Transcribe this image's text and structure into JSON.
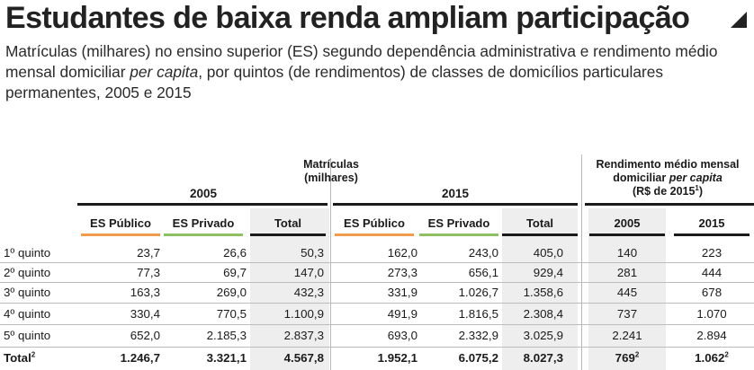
{
  "title": "Estudantes de baixa renda ampliam participação",
  "subtitle_parts": [
    "Matrículas (milhares) no ensino superior (ES) segundo dependência administrativa e rendimento médio mensal domiciliar ",
    "per capita",
    ", por quintos (de rendimentos) de classes de domicílios particulares permanentes, 2005 e 2015"
  ],
  "chart_data": {
    "type": "table",
    "group_headers": {
      "matriculas": "Matrículas\n(milhares)",
      "year_2005": "2005",
      "year_2015": "2015",
      "rendimento_line1": "Rendimento médio mensal",
      "rendimento_line2_pre": "domiciliar ",
      "rendimento_line2_em": "per capita",
      "rendimento_line3": "(R$ de 2015",
      "rendimento_line3_sup": "1",
      "rendimento_line3_post": ")"
    },
    "columns": [
      "ES Público",
      "ES Privado",
      "Total",
      "ES Público",
      "ES Privado",
      "Total",
      "2005",
      "2015"
    ],
    "accent_colors": {
      "es_publico": "#f39b4c",
      "es_privado": "#8cc063",
      "total": "#1a1a1a",
      "rendimento": "#1a1a1a"
    },
    "rows": [
      {
        "label": "1º quinto",
        "values": [
          "23,7",
          "26,6",
          "50,3",
          "162,0",
          "243,0",
          "405,0",
          "140",
          "223"
        ]
      },
      {
        "label": "2º quinto",
        "values": [
          "77,3",
          "69,7",
          "147,0",
          "273,3",
          "656,1",
          "929,4",
          "281",
          "444"
        ]
      },
      {
        "label": "3º quinto",
        "values": [
          "163,3",
          "269,0",
          "432,3",
          "331,9",
          "1.026,7",
          "1.358,6",
          "445",
          "678"
        ]
      },
      {
        "label": "4º quinto",
        "values": [
          "330,4",
          "770,5",
          "1.100,9",
          "491,9",
          "1.816,5",
          "2.308,4",
          "737",
          "1.070"
        ]
      },
      {
        "label": "5º quinto",
        "values": [
          "652,0",
          "2.185,3",
          "2.837,3",
          "693,0",
          "2.332,9",
          "3.025,9",
          "2.241",
          "2.894"
        ]
      }
    ],
    "total_row": {
      "label": "Total",
      "label_sup": "2",
      "values": [
        "1.246,7",
        "3.321,1",
        "4.567,8",
        "1.952,1",
        "6.075,2",
        "8.027,3",
        "769",
        "1.062"
      ],
      "value_sups": [
        "",
        "",
        "",
        "",
        "",
        "",
        "2",
        "2"
      ]
    }
  }
}
